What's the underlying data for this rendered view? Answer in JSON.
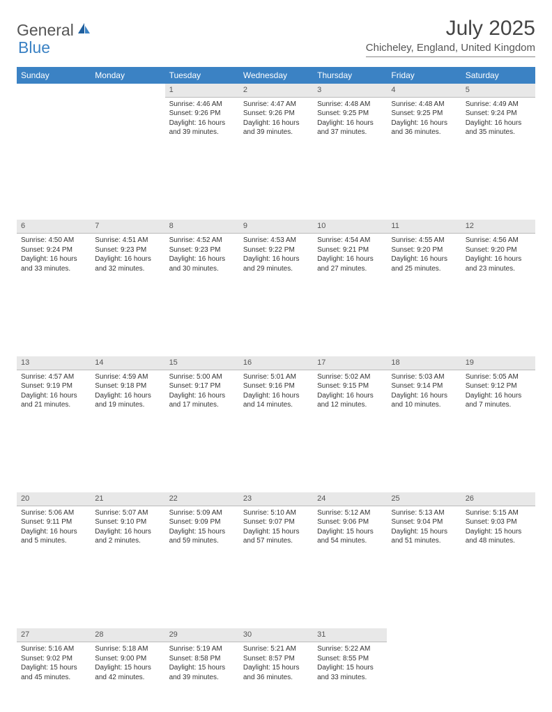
{
  "brand": {
    "part1": "General",
    "part2": "Blue"
  },
  "title": "July 2025",
  "location": "Chicheley, England, United Kingdom",
  "colors": {
    "header_bg": "#3b82c4",
    "header_text": "#ffffff",
    "daynum_bg": "#e8e8e8",
    "text": "#333333",
    "title_text": "#444444",
    "brand_gray": "#555555",
    "brand_blue": "#3b82c4"
  },
  "weekdays": [
    "Sunday",
    "Monday",
    "Tuesday",
    "Wednesday",
    "Thursday",
    "Friday",
    "Saturday"
  ],
  "weeks": [
    [
      null,
      null,
      {
        "n": "1",
        "sr": "4:46 AM",
        "ss": "9:26 PM",
        "dl": "16 hours and 39 minutes."
      },
      {
        "n": "2",
        "sr": "4:47 AM",
        "ss": "9:26 PM",
        "dl": "16 hours and 39 minutes."
      },
      {
        "n": "3",
        "sr": "4:48 AM",
        "ss": "9:25 PM",
        "dl": "16 hours and 37 minutes."
      },
      {
        "n": "4",
        "sr": "4:48 AM",
        "ss": "9:25 PM",
        "dl": "16 hours and 36 minutes."
      },
      {
        "n": "5",
        "sr": "4:49 AM",
        "ss": "9:24 PM",
        "dl": "16 hours and 35 minutes."
      }
    ],
    [
      {
        "n": "6",
        "sr": "4:50 AM",
        "ss": "9:24 PM",
        "dl": "16 hours and 33 minutes."
      },
      {
        "n": "7",
        "sr": "4:51 AM",
        "ss": "9:23 PM",
        "dl": "16 hours and 32 minutes."
      },
      {
        "n": "8",
        "sr": "4:52 AM",
        "ss": "9:23 PM",
        "dl": "16 hours and 30 minutes."
      },
      {
        "n": "9",
        "sr": "4:53 AM",
        "ss": "9:22 PM",
        "dl": "16 hours and 29 minutes."
      },
      {
        "n": "10",
        "sr": "4:54 AM",
        "ss": "9:21 PM",
        "dl": "16 hours and 27 minutes."
      },
      {
        "n": "11",
        "sr": "4:55 AM",
        "ss": "9:20 PM",
        "dl": "16 hours and 25 minutes."
      },
      {
        "n": "12",
        "sr": "4:56 AM",
        "ss": "9:20 PM",
        "dl": "16 hours and 23 minutes."
      }
    ],
    [
      {
        "n": "13",
        "sr": "4:57 AM",
        "ss": "9:19 PM",
        "dl": "16 hours and 21 minutes."
      },
      {
        "n": "14",
        "sr": "4:59 AM",
        "ss": "9:18 PM",
        "dl": "16 hours and 19 minutes."
      },
      {
        "n": "15",
        "sr": "5:00 AM",
        "ss": "9:17 PM",
        "dl": "16 hours and 17 minutes."
      },
      {
        "n": "16",
        "sr": "5:01 AM",
        "ss": "9:16 PM",
        "dl": "16 hours and 14 minutes."
      },
      {
        "n": "17",
        "sr": "5:02 AM",
        "ss": "9:15 PM",
        "dl": "16 hours and 12 minutes."
      },
      {
        "n": "18",
        "sr": "5:03 AM",
        "ss": "9:14 PM",
        "dl": "16 hours and 10 minutes."
      },
      {
        "n": "19",
        "sr": "5:05 AM",
        "ss": "9:12 PM",
        "dl": "16 hours and 7 minutes."
      }
    ],
    [
      {
        "n": "20",
        "sr": "5:06 AM",
        "ss": "9:11 PM",
        "dl": "16 hours and 5 minutes."
      },
      {
        "n": "21",
        "sr": "5:07 AM",
        "ss": "9:10 PM",
        "dl": "16 hours and 2 minutes."
      },
      {
        "n": "22",
        "sr": "5:09 AM",
        "ss": "9:09 PM",
        "dl": "15 hours and 59 minutes."
      },
      {
        "n": "23",
        "sr": "5:10 AM",
        "ss": "9:07 PM",
        "dl": "15 hours and 57 minutes."
      },
      {
        "n": "24",
        "sr": "5:12 AM",
        "ss": "9:06 PM",
        "dl": "15 hours and 54 minutes."
      },
      {
        "n": "25",
        "sr": "5:13 AM",
        "ss": "9:04 PM",
        "dl": "15 hours and 51 minutes."
      },
      {
        "n": "26",
        "sr": "5:15 AM",
        "ss": "9:03 PM",
        "dl": "15 hours and 48 minutes."
      }
    ],
    [
      {
        "n": "27",
        "sr": "5:16 AM",
        "ss": "9:02 PM",
        "dl": "15 hours and 45 minutes."
      },
      {
        "n": "28",
        "sr": "5:18 AM",
        "ss": "9:00 PM",
        "dl": "15 hours and 42 minutes."
      },
      {
        "n": "29",
        "sr": "5:19 AM",
        "ss": "8:58 PM",
        "dl": "15 hours and 39 minutes."
      },
      {
        "n": "30",
        "sr": "5:21 AM",
        "ss": "8:57 PM",
        "dl": "15 hours and 36 minutes."
      },
      {
        "n": "31",
        "sr": "5:22 AM",
        "ss": "8:55 PM",
        "dl": "15 hours and 33 minutes."
      },
      null,
      null
    ]
  ],
  "labels": {
    "sunrise": "Sunrise:",
    "sunset": "Sunset:",
    "daylight": "Daylight:"
  }
}
